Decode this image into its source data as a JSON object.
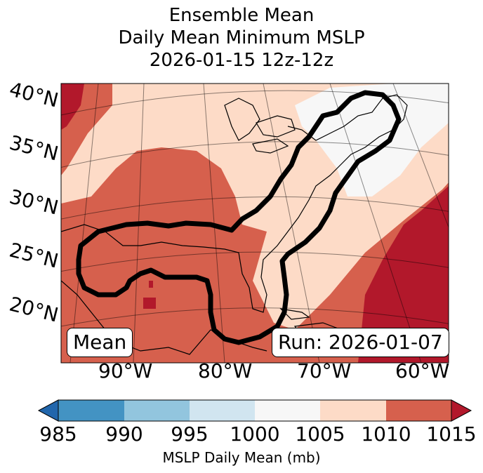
{
  "title": {
    "line1": "Ensemble Mean",
    "line2": "Daily Mean Minimum MSLP",
    "line3": "2026-01-15 12z-12z"
  },
  "map": {
    "lat_labels": [
      "40°N",
      "35°N",
      "30°N",
      "25°N",
      "20°N"
    ],
    "lon_labels": [
      "90°W",
      "80°W",
      "70°W",
      "60°W"
    ],
    "left_box": "Mean",
    "right_box": "Run: 2026-01-07"
  },
  "colorbar": {
    "ticks": [
      "985",
      "990",
      "995",
      "1000",
      "1005",
      "1010",
      "1015"
    ],
    "label": "MSLP Daily Mean (mb)",
    "colors": [
      "#2166ac",
      "#4393c3",
      "#92c5de",
      "#d1e5f0",
      "#f7f7f7",
      "#fddbc7",
      "#d6604d",
      "#b2182b"
    ]
  }
}
